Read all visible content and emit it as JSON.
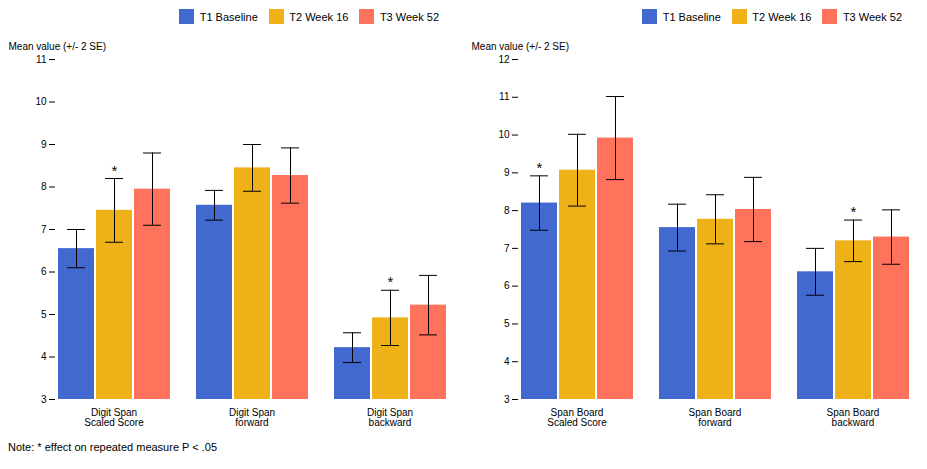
{
  "chart_data": [
    {
      "type": "bar",
      "categories": [
        "Digit Span\nScaled Score",
        "Digit Span\nforward",
        "Digit Span\nbackward"
      ],
      "series": [
        {
          "name": "T1 Baseline",
          "values": [
            6.55,
            7.57,
            4.22
          ],
          "errors": [
            0.45,
            0.35,
            0.35
          ]
        },
        {
          "name": "T2 Week 16",
          "values": [
            7.45,
            8.45,
            4.92
          ],
          "errors": [
            0.75,
            0.55,
            0.65
          ]
        },
        {
          "name": "T3 Week 52",
          "values": [
            7.95,
            8.27,
            5.22
          ],
          "errors": [
            0.85,
            0.65,
            0.7
          ]
        }
      ],
      "annotations": [
        {
          "text": "*",
          "category": "Digit Span\nScaled Score",
          "series": "T2 Week 16"
        },
        {
          "text": "*",
          "category": "Digit Span\nbackward",
          "series": "T2 Week 16"
        }
      ],
      "ylabel": "Mean value (+/- 2 SE)",
      "ylim": [
        3,
        11
      ],
      "yticks": [
        3,
        4,
        5,
        6,
        7,
        8,
        9,
        10,
        11
      ],
      "legend": "top-right",
      "grid": false,
      "caption": "Note: * effect on repeated measure P < .05"
    },
    {
      "type": "bar",
      "categories": [
        "Span Board\nScaled Score",
        "Span Board\nforward",
        "Span Board\nbackward"
      ],
      "series": [
        {
          "name": "T1 Baseline",
          "values": [
            8.2,
            7.55,
            6.38
          ],
          "errors": [
            0.72,
            0.62,
            0.62
          ]
        },
        {
          "name": "T2 Week 16",
          "values": [
            9.07,
            7.77,
            7.2
          ],
          "errors": [
            0.95,
            0.65,
            0.55
          ]
        },
        {
          "name": "T3 Week 52",
          "values": [
            9.92,
            8.03,
            7.3
          ],
          "errors": [
            1.1,
            0.85,
            0.72
          ]
        }
      ],
      "annotations": [
        {
          "text": "*",
          "category": "Span Board\nScaled Score",
          "series": "T1 Baseline"
        },
        {
          "text": "*",
          "category": "Span Board\nbackward",
          "series": "T2 Week 16"
        }
      ],
      "ylabel": "Mean value (+/- 2 SE)",
      "ylim": [
        3,
        12
      ],
      "yticks": [
        3,
        4,
        5,
        6,
        7,
        8,
        9,
        10,
        11,
        12
      ],
      "legend": "top-right",
      "grid": false
    }
  ]
}
